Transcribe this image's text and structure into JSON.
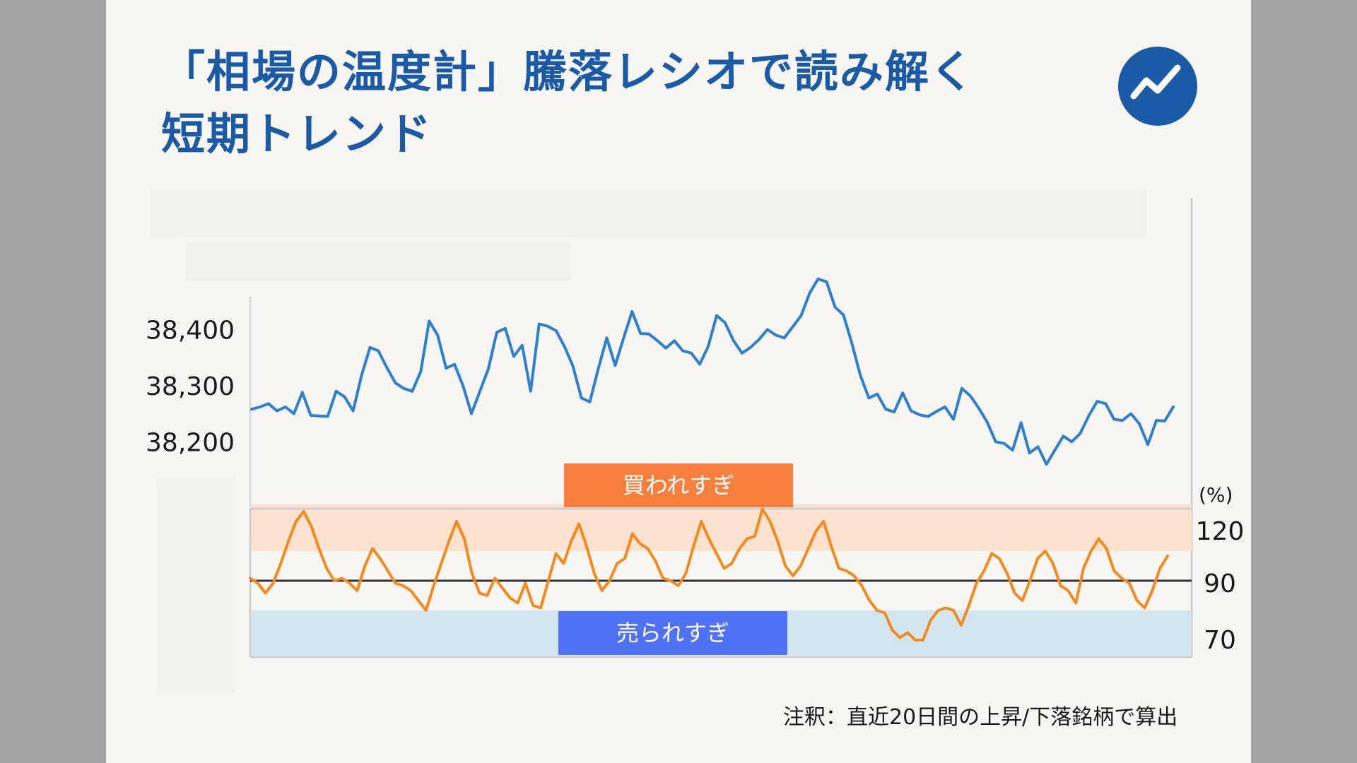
{
  "title_lines": [
    "「相場の温度計」騰落レシオで読み解く",
    "短期トレンド"
  ],
  "note": "注釈：直近20日間の上昇/下落銘柄で算出",
  "logo_icon": "trend-up-icon",
  "colors": {
    "title": "#1b5aa6",
    "index_line": "#2e7fcc",
    "ratio_line": "#f28a1e",
    "overbought_zone": "#fde3cf",
    "oversold_zone": "#d3e6ef",
    "overbought_label_bg": "#f7803e",
    "oversold_label_bg": "#4f72f7",
    "reference_line": "#333333"
  },
  "chart_data": [
    {
      "type": "line",
      "title": "",
      "yticks": [
        38400,
        38300,
        38200
      ],
      "ytick_labels": [
        "38,400",
        "38,300",
        "38,200"
      ],
      "ylim": [
        38150,
        38500
      ],
      "grid": false,
      "series": [
        {
          "values": [
            38258,
            38262,
            38268,
            38255,
            38262,
            38250,
            38288,
            38247,
            38246,
            38245,
            38290,
            38280,
            38255,
            38318,
            38368,
            38362,
            38332,
            38305,
            38295,
            38290,
            38325,
            38415,
            38390,
            38331,
            38338,
            38300,
            38250,
            38290,
            38330,
            38395,
            38402,
            38352,
            38372,
            38290,
            38410,
            38406,
            38398,
            38370,
            38335,
            38278,
            38271,
            38330,
            38385,
            38336,
            38385,
            38432,
            38393,
            38392,
            38380,
            38367,
            38380,
            38362,
            38358,
            38338,
            38370,
            38425,
            38412,
            38380,
            38358,
            38368,
            38382,
            38400,
            38390,
            38385,
            38405,
            38425,
            38465,
            38490,
            38485,
            38440,
            38426,
            38375,
            38318,
            38278,
            38285,
            38258,
            38253,
            38287,
            38255,
            38248,
            38245,
            38254,
            38262,
            38240,
            38295,
            38282,
            38260,
            38235,
            38200,
            38197,
            38185,
            38234,
            38180,
            38191,
            38160,
            38185,
            38210,
            38200,
            38215,
            38246,
            38272,
            38268,
            38240,
            38238,
            38250,
            38232,
            38195,
            38238,
            38237,
            38262
          ]
        }
      ]
    },
    {
      "type": "line",
      "unit": "(%)",
      "yticks": [
        120,
        90,
        70
      ],
      "ylim": [
        66,
        128
      ],
      "reference_line": 90,
      "bands": [
        {
          "label": "買われすぎ",
          "from": 102,
          "to": 121
        },
        {
          "label": "売られすぎ",
          "from": 66,
          "to": 78
        }
      ],
      "series": [
        {
          "values": [
            91,
            89,
            85,
            89,
            97,
            106,
            114,
            118,
            112,
            103,
            95,
            90,
            91,
            89,
            86,
            96,
            103,
            99,
            94,
            89,
            88,
            86,
            82,
            78,
            88,
            97,
            106,
            114,
            107,
            93,
            85,
            84,
            91,
            87,
            83,
            81,
            89,
            80,
            79,
            90,
            101,
            97,
            106,
            113,
            104,
            93,
            86,
            90,
            97,
            99,
            109,
            105,
            103,
            98,
            91,
            90,
            88,
            93,
            104,
            114,
            107,
            101,
            95,
            97,
            103,
            107,
            108,
            119,
            114,
            106,
            96,
            92,
            96,
            103,
            110,
            114,
            104,
            95,
            94,
            92,
            88,
            82,
            78,
            77,
            70,
            67,
            69,
            66,
            66,
            74,
            78,
            79,
            78,
            72,
            80,
            89,
            94,
            101,
            99,
            93,
            85,
            82,
            90,
            99,
            102,
            97,
            88,
            86,
            81,
            95,
            102,
            107,
            103,
            94,
            91,
            89,
            82,
            79,
            86,
            95,
            100
          ]
        }
      ]
    }
  ]
}
